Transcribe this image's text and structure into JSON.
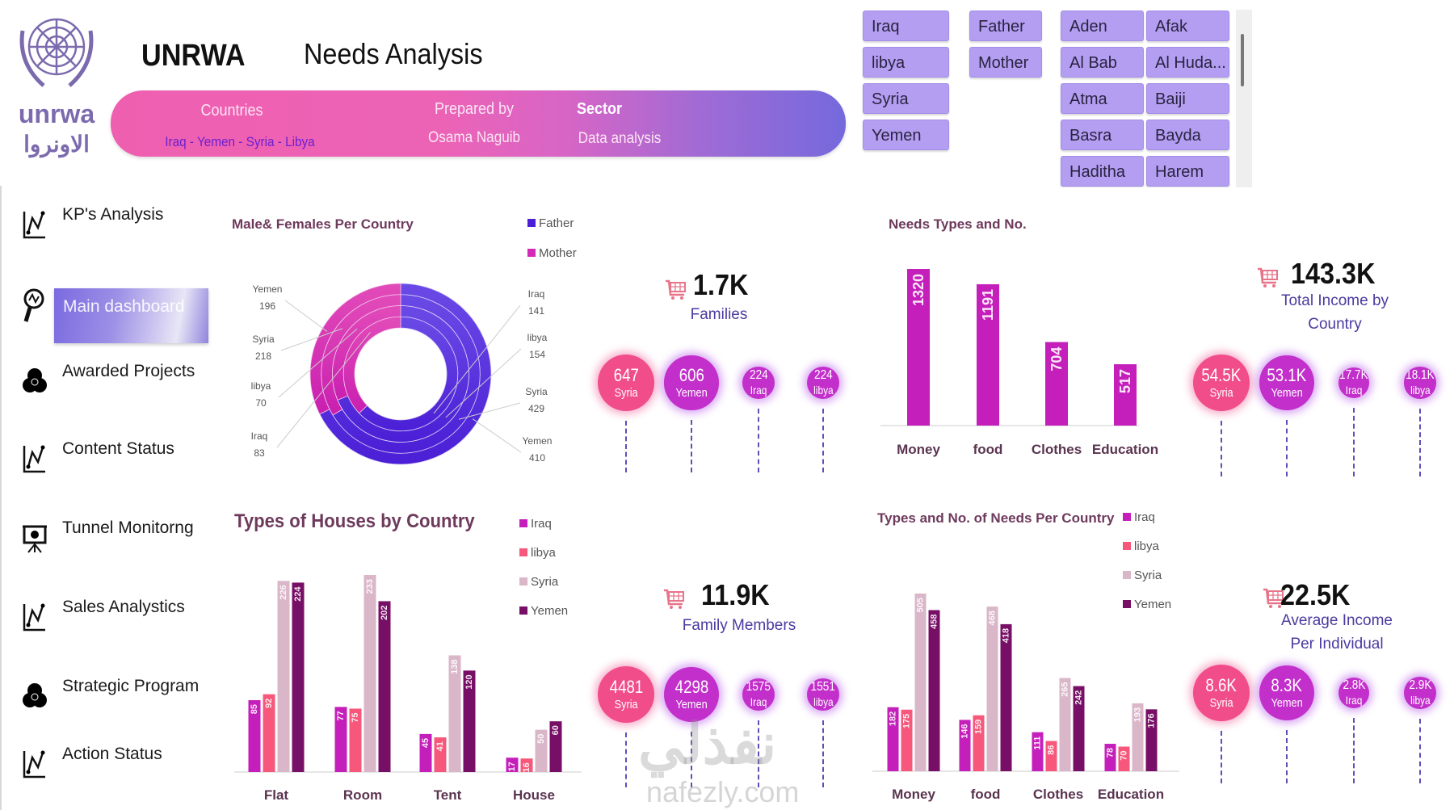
{
  "header": {
    "logo_en": "unrwa",
    "logo_ar": "الاونروا",
    "brand": "UNRWA",
    "title": "Needs Analysis"
  },
  "banner": {
    "countries_label": "Countries",
    "countries_value": "Iraq - Yemen - Syria - Libya",
    "prepared_label": "Prepared by",
    "prepared_value": "Osama Naguib",
    "sector_label": "Sector",
    "sector_value": "Data analysis"
  },
  "slicers": {
    "countries": [
      "Iraq",
      "libya",
      "Syria",
      "Yemen"
    ],
    "parents": [
      "Father",
      "Mother"
    ],
    "cities": [
      "Aden",
      "Afak",
      "Al Bab",
      "Al Huda...",
      "Atma",
      "Baiji",
      "Basra",
      "Bayda",
      "Haditha",
      "Harem"
    ]
  },
  "sidebar": {
    "items": [
      {
        "label": "KP's Analysis",
        "icon": "line-chart-icon"
      },
      {
        "label": "Main dashboard",
        "icon": "magnifier-chart-icon",
        "active": true
      },
      {
        "label": "Awarded Projects",
        "icon": "venn-icon"
      },
      {
        "label": "Content Status",
        "icon": "line-chart-icon"
      },
      {
        "label": "Tunnel Monitorng",
        "icon": "presentation-icon"
      },
      {
        "label": "Sales Analystics",
        "icon": "line-chart-icon"
      },
      {
        "label": "Strategic Program",
        "icon": "venn-icon"
      },
      {
        "label": "Action Status",
        "icon": "line-chart-icon"
      }
    ]
  },
  "kpis": [
    {
      "value": "1.7K",
      "label": "Families",
      "icon": "cart-icon",
      "bubbles": [
        {
          "value": 647,
          "text": "647",
          "country": "Syria"
        },
        {
          "value": 606,
          "text": "606",
          "country": "Yemen"
        },
        {
          "value": 224,
          "text": "224",
          "country": "Iraq"
        },
        {
          "value": 224,
          "text": "224",
          "country": "libya"
        }
      ]
    },
    {
      "value": "143.3K",
      "label": "Total Income by Country",
      "icon": "cart-icon",
      "bubbles": [
        {
          "value": 54500,
          "text": "54.5K",
          "country": "Syria"
        },
        {
          "value": 53100,
          "text": "53.1K",
          "country": "Yemen"
        },
        {
          "value": 17700,
          "text": "17.7K",
          "country": "Iraq"
        },
        {
          "value": 18100,
          "text": "18.1K",
          "country": "libya"
        }
      ]
    },
    {
      "value": "11.9K",
      "label": "Family Members",
      "icon": "cart-icon",
      "bubbles": [
        {
          "value": 4481,
          "text": "4481",
          "country": "Syria"
        },
        {
          "value": 4298,
          "text": "4298",
          "country": "Yemen"
        },
        {
          "value": 1575,
          "text": "1575",
          "country": "Iraq"
        },
        {
          "value": 1551,
          "text": "1551",
          "country": "libya"
        }
      ]
    },
    {
      "value": "22.5K",
      "label": "Average Income Per Individual",
      "icon": "cart-icon",
      "bubbles": [
        {
          "value": 8600,
          "text": "8.6K",
          "country": "Syria"
        },
        {
          "value": 8300,
          "text": "8.3K",
          "country": "Yemen"
        },
        {
          "value": 2800,
          "text": "2.8K",
          "country": "Iraq"
        },
        {
          "value": 2900,
          "text": "2.9K",
          "country": "libya"
        }
      ]
    }
  ],
  "colors": {
    "father": "#4b1fd6",
    "mother": "#d42ab8",
    "iraq": "#c51fbb",
    "libya": "#f6577a",
    "syria": "#dab6c9",
    "yemen": "#780f66",
    "single_bar": "#c51fbb",
    "bubble_top": "#f04d8a",
    "bubble_other": "#c22fca"
  },
  "chart_data": [
    {
      "type": "pie",
      "subtype": "multi-ring donut",
      "title": "Male& Females Per Country",
      "legend": [
        "Father",
        "Mother"
      ],
      "legend_position": "top-right",
      "rings": [
        {
          "country": "Yemen",
          "Father": 410,
          "Mother": 196
        },
        {
          "country": "Syria",
          "Father": 429,
          "Mother": 218
        },
        {
          "country": "libya",
          "Father": 154,
          "Mother": 70
        },
        {
          "country": "Iraq",
          "Father": 141,
          "Mother": 83
        }
      ]
    },
    {
      "type": "bar",
      "title": "Needs Types and No.",
      "categories": [
        "Money",
        "food",
        "Clothes",
        "Education"
      ],
      "values": [
        1320,
        1191,
        704,
        517
      ],
      "ylim": [
        0,
        1320
      ],
      "grid": false
    },
    {
      "type": "bar",
      "title": "Types of Houses by Country",
      "legend_position": "right",
      "categories": [
        "Flat",
        "Room",
        "Tent",
        "House"
      ],
      "series": [
        {
          "name": "Iraq",
          "values": [
            85,
            77,
            45,
            17
          ]
        },
        {
          "name": "libya",
          "values": [
            92,
            75,
            41,
            16
          ]
        },
        {
          "name": "Syria",
          "values": [
            226,
            233,
            138,
            50
          ]
        },
        {
          "name": "Yemen",
          "values": [
            224,
            202,
            120,
            60
          ]
        }
      ],
      "ylim": [
        0,
        233
      ],
      "grid": false
    },
    {
      "type": "bar",
      "title": "Types and No. of Needs Per Country",
      "legend_position": "right",
      "categories": [
        "Money",
        "food",
        "Clothes",
        "Education"
      ],
      "series": [
        {
          "name": "Iraq",
          "values": [
            182,
            146,
            111,
            78
          ]
        },
        {
          "name": "libya",
          "values": [
            175,
            159,
            86,
            70
          ]
        },
        {
          "name": "Syria",
          "values": [
            505,
            468,
            265,
            193
          ]
        },
        {
          "name": "Yemen",
          "values": [
            458,
            418,
            242,
            176
          ]
        }
      ],
      "ylim": [
        0,
        505
      ],
      "grid": false
    }
  ],
  "watermark": {
    "ar": "نفذلي",
    "en": "nafezly.com"
  }
}
